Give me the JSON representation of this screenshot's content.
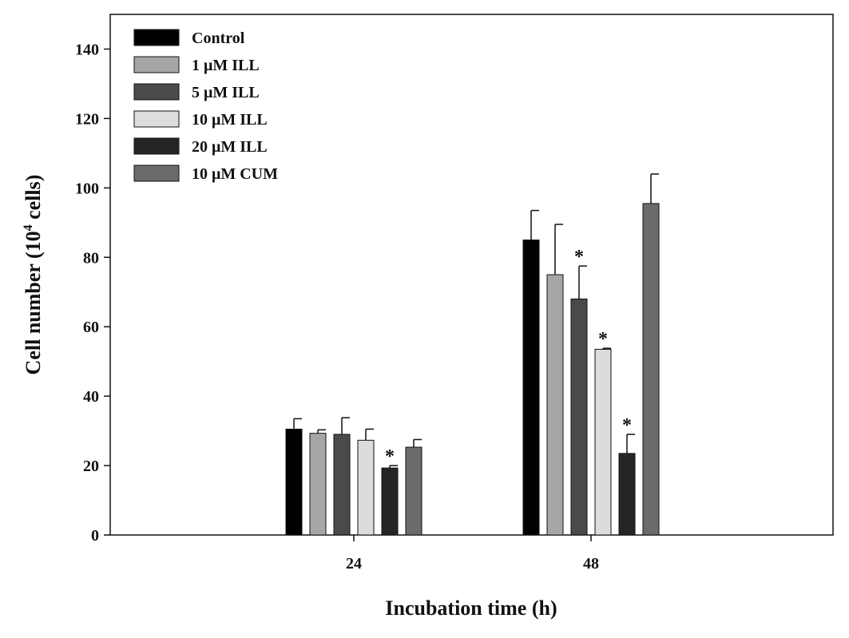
{
  "chart_data": {
    "type": "bar",
    "title": "",
    "xlabel": "Incubation time (h)",
    "ylabel_main": "Cell number (10",
    "ylabel_sup": "4",
    "ylabel_tail": " cells)",
    "ylim": [
      0,
      150
    ],
    "yticks": [
      0,
      20,
      40,
      60,
      80,
      100,
      120,
      140
    ],
    "ytick_labels": [
      "0",
      "20",
      "40",
      "60",
      "80",
      "100",
      "120",
      "140"
    ],
    "categories": [
      "24",
      "48"
    ],
    "legend_position": "top-left",
    "grid": false,
    "series": [
      {
        "name": "Control",
        "color": "#000000",
        "values": [
          30.5,
          85
        ],
        "errors": [
          3,
          8.5
        ],
        "significant": [
          false,
          false
        ]
      },
      {
        "name": "1 μM ILL",
        "color": "#a6a6a6",
        "values": [
          29.3,
          75
        ],
        "errors": [
          1,
          14.5
        ],
        "significant": [
          false,
          false
        ]
      },
      {
        "name": "5 μM ILL",
        "color": "#4a4a4a",
        "values": [
          29,
          68
        ],
        "errors": [
          4.8,
          9.5
        ],
        "significant": [
          false,
          true
        ]
      },
      {
        "name": "10 μM ILL",
        "color": "#dcdcdc",
        "values": [
          27.3,
          53.5
        ],
        "errors": [
          3.2,
          0.3
        ],
        "significant": [
          false,
          true
        ]
      },
      {
        "name": "20 μM ILL",
        "color": "#252525",
        "values": [
          19.3,
          23.5
        ],
        "errors": [
          0.7,
          5.5
        ],
        "significant": [
          true,
          true
        ]
      },
      {
        "name": "10 μM CUM",
        "color": "#6b6b6b",
        "values": [
          25.3,
          95.5
        ],
        "errors": [
          2.2,
          8.5
        ],
        "significant": [
          false,
          false
        ]
      }
    ],
    "significance_marker": "*"
  }
}
